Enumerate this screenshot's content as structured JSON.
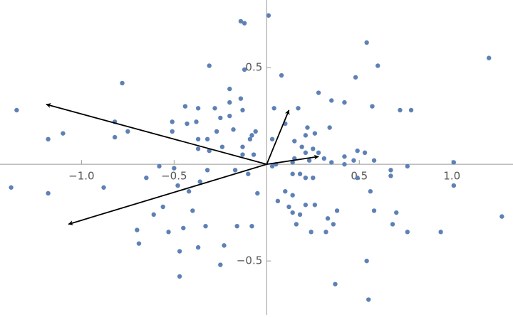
{
  "chart_data": {
    "type": "scatter",
    "x": [
      0.01,
      -0.14,
      -0.12,
      0.54,
      1.2,
      0.6,
      -0.31,
      -0.12,
      0.08,
      0.48,
      -0.78,
      -0.2,
      0.28,
      -0.14,
      -1.35,
      -0.44,
      -0.28,
      -0.37,
      -0.25,
      -0.2,
      0.04,
      0.17,
      0.35,
      0.42,
      0.57,
      0.72,
      0.78,
      -0.82,
      -0.51,
      -0.43,
      -0.38,
      -0.2,
      -0.13,
      -1.1,
      -0.75,
      -0.51,
      -0.27,
      -0.18,
      -0.06,
      0.1,
      0.22,
      0.34,
      -1.18,
      -0.82,
      -0.37,
      -0.32,
      -0.09,
      0.03,
      -0.08,
      0.21,
      0.26,
      0.15,
      -0.13,
      -0.37,
      -0.31,
      -0.24,
      -0.13,
      -0.07,
      0.19,
      0.25,
      0.28,
      0.31,
      0.21,
      0.49,
      0.53,
      0.42,
      0.35,
      0.15,
      0.23,
      0.05,
      0.14,
      0.42,
      0.47,
      0.58,
      1.01,
      -0.58,
      -0.5,
      -0.32,
      -0.17,
      0.03,
      0.14,
      0.18,
      -0.1,
      0.25,
      0.67,
      0.76,
      0.67,
      -1.38,
      -1.18,
      -0.88,
      -0.65,
      -0.48,
      -0.36,
      -0.42,
      0.1,
      0.14,
      0.21,
      0.49,
      0.56,
      1.01,
      -0.05,
      0.06,
      0.12,
      0.21,
      0.26,
      -0.4,
      -0.56,
      -0.61,
      0.14,
      0.18,
      0.33,
      0.38,
      0.58,
      0.7,
      1.27,
      -0.7,
      -0.69,
      -0.53,
      -0.45,
      -0.33,
      -0.16,
      -0.08,
      0.16,
      0.24,
      0.32,
      0.36,
      0.68,
      0.76,
      0.94,
      -0.47,
      -0.37,
      -0.23,
      -0.47,
      0.54,
      0.37,
      0.55,
      -0.25
    ],
    "values": [
      0.77,
      0.74,
      0.73,
      0.63,
      0.55,
      0.51,
      0.51,
      0.49,
      0.46,
      0.45,
      0.42,
      0.39,
      0.37,
      0.34,
      0.28,
      0.3,
      0.29,
      0.29,
      0.24,
      0.32,
      0.29,
      0.29,
      0.33,
      0.32,
      0.3,
      0.28,
      0.28,
      0.22,
      0.22,
      0.21,
      0.22,
      0.25,
      0.28,
      0.16,
      0.17,
      0.17,
      0.17,
      0.18,
      0.17,
      0.21,
      0.19,
      0.19,
      0.13,
      0.14,
      0.13,
      0.13,
      0.13,
      0.13,
      0.15,
      0.15,
      0.16,
      0.12,
      0.09,
      0.08,
      0.07,
      0.09,
      0.05,
      0.05,
      0.09,
      0.08,
      0.06,
      0.03,
      0.06,
      0.07,
      0.06,
      0.04,
      0.01,
      0.03,
      0.02,
      0,
      0.01,
      0,
      0.02,
      0.02,
      0.01,
      -0.01,
      -0.02,
      -0.03,
      -0.03,
      -0.01,
      -0.05,
      -0.05,
      -0.05,
      -0.07,
      -0.03,
      -0.01,
      -0.06,
      -0.12,
      -0.15,
      -0.12,
      -0.07,
      -0.11,
      -0.09,
      -0.14,
      -0.14,
      -0.16,
      -0.07,
      -0.07,
      -0.14,
      -0.11,
      -0.15,
      -0.19,
      -0.22,
      -0.21,
      -0.21,
      -0.24,
      -0.22,
      -0.26,
      -0.25,
      -0.26,
      -0.28,
      -0.24,
      -0.24,
      -0.25,
      -0.27,
      -0.34,
      -0.41,
      -0.35,
      -0.33,
      -0.32,
      -0.32,
      -0.32,
      -0.31,
      -0.35,
      -0.35,
      -0.31,
      -0.31,
      -0.35,
      -0.35,
      -0.45,
      -0.43,
      -0.42,
      -0.58,
      -0.5,
      -0.62,
      -0.7,
      -0.52
    ],
    "color": "#5e81b5",
    "arrows": {
      "x": [
        -1.19,
        -1.07,
        0.12,
        0.28
      ],
      "y": [
        0.31,
        -0.31,
        0.28,
        0.04
      ],
      "color": "#000000"
    },
    "xlim": [
      -1.44,
      1.33
    ],
    "ylim": [
      -0.79,
      0.85
    ],
    "xticks": [
      {
        "value": -1.0,
        "label": "−1.0"
      },
      {
        "value": -0.5,
        "label": "−0.5"
      },
      0.5,
      {
        "value": 1.0,
        "label": "1.0"
      }
    ],
    "yticks": [
      0.5,
      {
        "value": -0.5,
        "label": "−0.5"
      }
    ]
  }
}
